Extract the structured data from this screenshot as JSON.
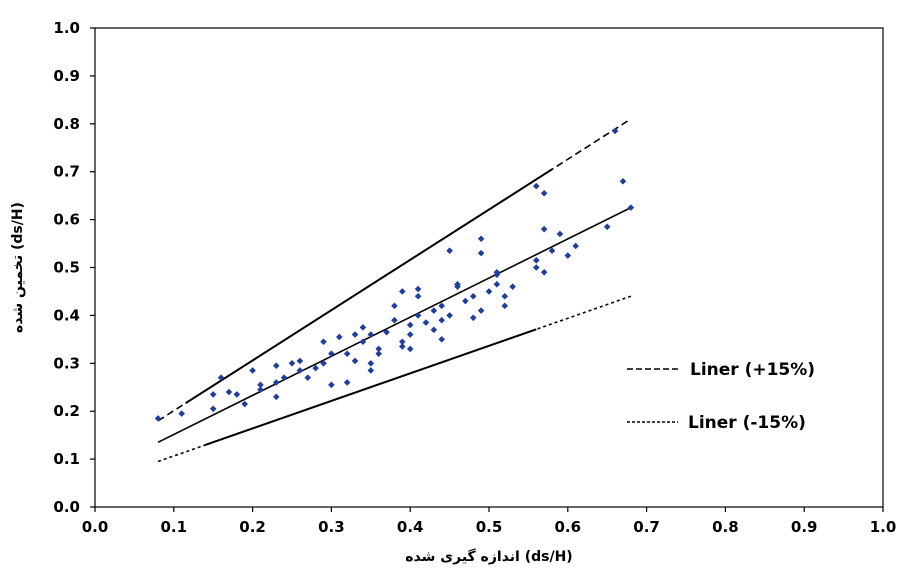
{
  "chart_data": {
    "type": "scatter",
    "xlabel": "اندازه گیری شده (ds/H)",
    "ylabel": "تخمین شده (ds/H)",
    "xlim": [
      0.0,
      1.0
    ],
    "ylim": [
      0.0,
      1.0
    ],
    "x_ticks": [
      "0.0",
      "0.1",
      "0.2",
      "0.3",
      "0.4",
      "0.5",
      "0.6",
      "0.7",
      "0.8",
      "0.9",
      "1.0"
    ],
    "y_ticks": [
      "0.0",
      "0.1",
      "0.2",
      "0.3",
      "0.4",
      "0.5",
      "0.6",
      "0.7",
      "0.8",
      "0.9",
      "1.0"
    ],
    "grid": false,
    "legend_position": "right",
    "colors": {
      "points": "#1f3f9f",
      "lines": "#000000"
    },
    "lines": [
      {
        "name": "Liner (+15%)",
        "style": "dashed",
        "x": [
          0.08,
          0.68
        ],
        "y": [
          0.18,
          0.81
        ]
      },
      {
        "name": "",
        "style": "solid",
        "x": [
          0.08,
          0.68
        ],
        "y": [
          0.135,
          0.625
        ]
      },
      {
        "name": "Liner (-15%)",
        "style": "dotted",
        "x": [
          0.08,
          0.68
        ],
        "y": [
          0.095,
          0.44
        ]
      }
    ],
    "points": [
      {
        "x": 0.08,
        "y": 0.185
      },
      {
        "x": 0.11,
        "y": 0.195
      },
      {
        "x": 0.15,
        "y": 0.205
      },
      {
        "x": 0.15,
        "y": 0.235
      },
      {
        "x": 0.16,
        "y": 0.27
      },
      {
        "x": 0.17,
        "y": 0.24
      },
      {
        "x": 0.18,
        "y": 0.235
      },
      {
        "x": 0.19,
        "y": 0.215
      },
      {
        "x": 0.2,
        "y": 0.285
      },
      {
        "x": 0.21,
        "y": 0.255
      },
      {
        "x": 0.21,
        "y": 0.245
      },
      {
        "x": 0.23,
        "y": 0.295
      },
      {
        "x": 0.23,
        "y": 0.23
      },
      {
        "x": 0.23,
        "y": 0.26
      },
      {
        "x": 0.24,
        "y": 0.27
      },
      {
        "x": 0.25,
        "y": 0.3
      },
      {
        "x": 0.26,
        "y": 0.305
      },
      {
        "x": 0.26,
        "y": 0.285
      },
      {
        "x": 0.27,
        "y": 0.27
      },
      {
        "x": 0.28,
        "y": 0.29
      },
      {
        "x": 0.29,
        "y": 0.3
      },
      {
        "x": 0.29,
        "y": 0.345
      },
      {
        "x": 0.3,
        "y": 0.32
      },
      {
        "x": 0.3,
        "y": 0.255
      },
      {
        "x": 0.31,
        "y": 0.355
      },
      {
        "x": 0.32,
        "y": 0.32
      },
      {
        "x": 0.32,
        "y": 0.26
      },
      {
        "x": 0.33,
        "y": 0.305
      },
      {
        "x": 0.33,
        "y": 0.36
      },
      {
        "x": 0.34,
        "y": 0.375
      },
      {
        "x": 0.34,
        "y": 0.345
      },
      {
        "x": 0.35,
        "y": 0.36
      },
      {
        "x": 0.35,
        "y": 0.3
      },
      {
        "x": 0.35,
        "y": 0.285
      },
      {
        "x": 0.36,
        "y": 0.33
      },
      {
        "x": 0.36,
        "y": 0.32
      },
      {
        "x": 0.37,
        "y": 0.365
      },
      {
        "x": 0.38,
        "y": 0.42
      },
      {
        "x": 0.38,
        "y": 0.39
      },
      {
        "x": 0.39,
        "y": 0.45
      },
      {
        "x": 0.39,
        "y": 0.345
      },
      {
        "x": 0.39,
        "y": 0.335
      },
      {
        "x": 0.4,
        "y": 0.38
      },
      {
        "x": 0.4,
        "y": 0.36
      },
      {
        "x": 0.4,
        "y": 0.33
      },
      {
        "x": 0.41,
        "y": 0.4
      },
      {
        "x": 0.41,
        "y": 0.44
      },
      {
        "x": 0.41,
        "y": 0.455
      },
      {
        "x": 0.42,
        "y": 0.385
      },
      {
        "x": 0.43,
        "y": 0.41
      },
      {
        "x": 0.43,
        "y": 0.37
      },
      {
        "x": 0.44,
        "y": 0.39
      },
      {
        "x": 0.44,
        "y": 0.35
      },
      {
        "x": 0.44,
        "y": 0.42
      },
      {
        "x": 0.45,
        "y": 0.535
      },
      {
        "x": 0.45,
        "y": 0.4
      },
      {
        "x": 0.46,
        "y": 0.46
      },
      {
        "x": 0.46,
        "y": 0.465
      },
      {
        "x": 0.47,
        "y": 0.43
      },
      {
        "x": 0.48,
        "y": 0.395
      },
      {
        "x": 0.48,
        "y": 0.44
      },
      {
        "x": 0.49,
        "y": 0.56
      },
      {
        "x": 0.49,
        "y": 0.53
      },
      {
        "x": 0.49,
        "y": 0.41
      },
      {
        "x": 0.5,
        "y": 0.45
      },
      {
        "x": 0.51,
        "y": 0.49
      },
      {
        "x": 0.51,
        "y": 0.485
      },
      {
        "x": 0.51,
        "y": 0.465
      },
      {
        "x": 0.52,
        "y": 0.44
      },
      {
        "x": 0.52,
        "y": 0.42
      },
      {
        "x": 0.53,
        "y": 0.46
      },
      {
        "x": 0.56,
        "y": 0.515
      },
      {
        "x": 0.56,
        "y": 0.67
      },
      {
        "x": 0.56,
        "y": 0.5
      },
      {
        "x": 0.57,
        "y": 0.655
      },
      {
        "x": 0.57,
        "y": 0.58
      },
      {
        "x": 0.57,
        "y": 0.49
      },
      {
        "x": 0.58,
        "y": 0.535
      },
      {
        "x": 0.59,
        "y": 0.57
      },
      {
        "x": 0.6,
        "y": 0.525
      },
      {
        "x": 0.61,
        "y": 0.545
      },
      {
        "x": 0.65,
        "y": 0.585
      },
      {
        "x": 0.66,
        "y": 0.785
      },
      {
        "x": 0.67,
        "y": 0.68
      },
      {
        "x": 0.68,
        "y": 0.625
      }
    ]
  }
}
